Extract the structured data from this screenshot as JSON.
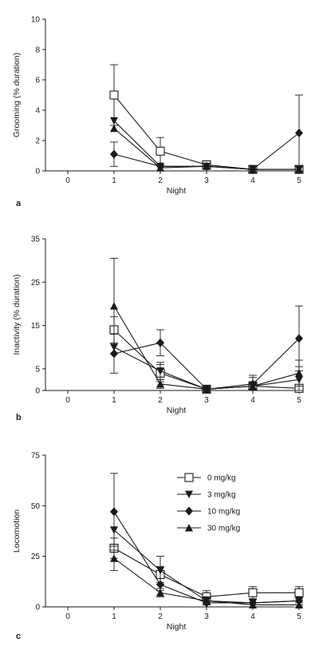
{
  "chart_data": [
    {
      "type": "line",
      "panel_label": "a",
      "xlabel": "Night",
      "ylabel": "Grooming (% duration)",
      "xlim": [
        0,
        5
      ],
      "ylim": [
        0,
        10
      ],
      "xticks": [
        "0",
        "1",
        "2",
        "3",
        "4",
        "5"
      ],
      "yticks": [
        "0",
        "2",
        "4",
        "6",
        "8",
        "10"
      ],
      "series": [
        {
          "marker": "square-open",
          "x": [
            1,
            2,
            3,
            4,
            5
          ],
          "values": [
            5.0,
            1.3,
            0.4,
            0.1,
            0.1
          ],
          "err": [
            2.0,
            0.9,
            0.2,
            0.1,
            0.1
          ]
        },
        {
          "marker": "triangle-down",
          "x": [
            1,
            2,
            3,
            4,
            5
          ],
          "values": [
            3.3,
            0.3,
            0.3,
            0.1,
            0.1
          ],
          "err": [
            0,
            0,
            0,
            0,
            0
          ]
        },
        {
          "marker": "diamond",
          "x": [
            1,
            2,
            3,
            4,
            5
          ],
          "values": [
            1.1,
            0.3,
            0.3,
            0.1,
            2.5
          ],
          "err": [
            0.8,
            0,
            0,
            0,
            2.5
          ]
        },
        {
          "marker": "triangle-up",
          "x": [
            1,
            2,
            3,
            4,
            5
          ],
          "values": [
            2.8,
            0.2,
            0.3,
            0.1,
            0.1
          ],
          "err": [
            0,
            0,
            0,
            0,
            0
          ]
        }
      ]
    },
    {
      "type": "line",
      "panel_label": "b",
      "xlabel": "Night",
      "ylabel": "Inactivity (% duration)",
      "xlim": [
        0,
        5
      ],
      "ylim": [
        0,
        35
      ],
      "xticks": [
        "0",
        "1",
        "2",
        "3",
        "4",
        "5"
      ],
      "yticks": [
        "0",
        "5",
        "15",
        "25",
        "35"
      ],
      "ytick_values": [
        0,
        5,
        15,
        25,
        35
      ],
      "series": [
        {
          "marker": "square-open",
          "x": [
            1,
            2,
            3,
            4,
            5
          ],
          "values": [
            14,
            4,
            0.3,
            1,
            0.5
          ],
          "err": [
            3,
            2,
            0.3,
            1,
            0.5
          ]
        },
        {
          "marker": "triangle-down",
          "x": [
            1,
            2,
            3,
            4,
            5
          ],
          "values": [
            10,
            4.5,
            0.3,
            1,
            2.5
          ],
          "err": [
            0,
            2,
            0,
            2,
            3
          ]
        },
        {
          "marker": "diamond",
          "x": [
            1,
            2,
            3,
            4,
            5
          ],
          "values": [
            8.5,
            11,
            0.3,
            1.5,
            12
          ],
          "err": [
            4.5,
            3,
            0.3,
            2,
            7.5
          ]
        },
        {
          "marker": "triangle-up",
          "x": [
            1,
            2,
            3,
            4,
            5
          ],
          "values": [
            19.5,
            1.5,
            0.3,
            1,
            4
          ],
          "err": [
            11,
            1,
            0.3,
            1,
            3
          ]
        }
      ]
    },
    {
      "type": "line",
      "panel_label": "c",
      "xlabel": "Night",
      "ylabel": "Locomotion",
      "xlim": [
        0,
        5
      ],
      "ylim": [
        0,
        75
      ],
      "xticks": [
        "0",
        "1",
        "2",
        "3",
        "4",
        "5"
      ],
      "yticks": [
        "0",
        "25",
        "50",
        "75"
      ],
      "legend_position": "top-right",
      "series": [
        {
          "name": "0 mg/kg",
          "marker": "square-open",
          "x": [
            1,
            2,
            3,
            4,
            5
          ],
          "values": [
            29,
            16,
            5,
            7,
            7
          ],
          "err": [
            5,
            4,
            3,
            3,
            3
          ]
        },
        {
          "name": "3 mg/kg",
          "marker": "triangle-down",
          "x": [
            1,
            2,
            3,
            4,
            5
          ],
          "values": [
            38,
            18,
            3,
            2,
            3
          ],
          "err": [
            0,
            7,
            2,
            2,
            2
          ]
        },
        {
          "name": "10 mg/kg",
          "marker": "diamond",
          "x": [
            1,
            2,
            3,
            4,
            5
          ],
          "values": [
            47,
            11,
            2,
            2,
            3
          ],
          "err": [
            19,
            3,
            2,
            2,
            2
          ]
        },
        {
          "name": "30 mg/kg",
          "marker": "triangle-up",
          "x": [
            1,
            2,
            3,
            4,
            5
          ],
          "values": [
            24,
            7,
            3,
            1,
            1
          ],
          "err": [
            6,
            2,
            2,
            1,
            1
          ]
        }
      ]
    }
  ]
}
